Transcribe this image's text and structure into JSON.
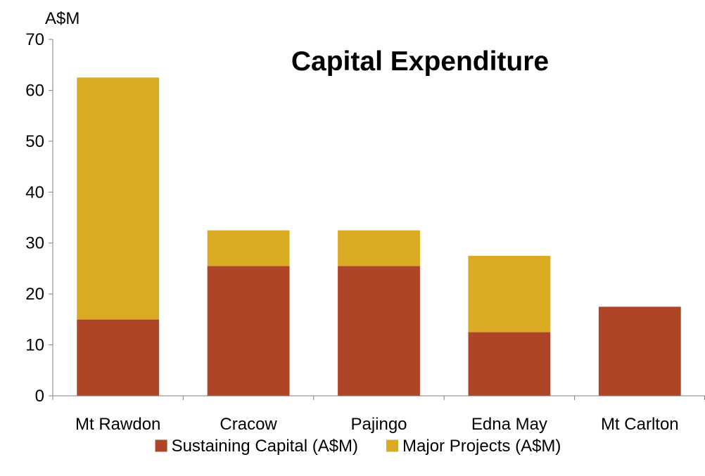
{
  "chart_data": {
    "type": "bar",
    "stacked": true,
    "title": "Capital Expenditure",
    "ylabel": "A$M",
    "xlabel": "",
    "ylim": [
      0,
      70
    ],
    "yticks": [
      0,
      10,
      20,
      30,
      40,
      50,
      60,
      70
    ],
    "categories": [
      "Mt Rawdon",
      "Cracow",
      "Pajingo",
      "Edna May",
      "Mt Carlton"
    ],
    "series": [
      {
        "name": "Sustaining Capital (A$M)",
        "color": "#B04426",
        "values": [
          15,
          25.5,
          25.5,
          12.5,
          17.5
        ]
      },
      {
        "name": "Major Projects (A$M)",
        "color": "#DBAA23",
        "values": [
          47.5,
          7,
          7,
          15,
          0
        ]
      }
    ],
    "grid": false,
    "legend": "bottom-center"
  }
}
